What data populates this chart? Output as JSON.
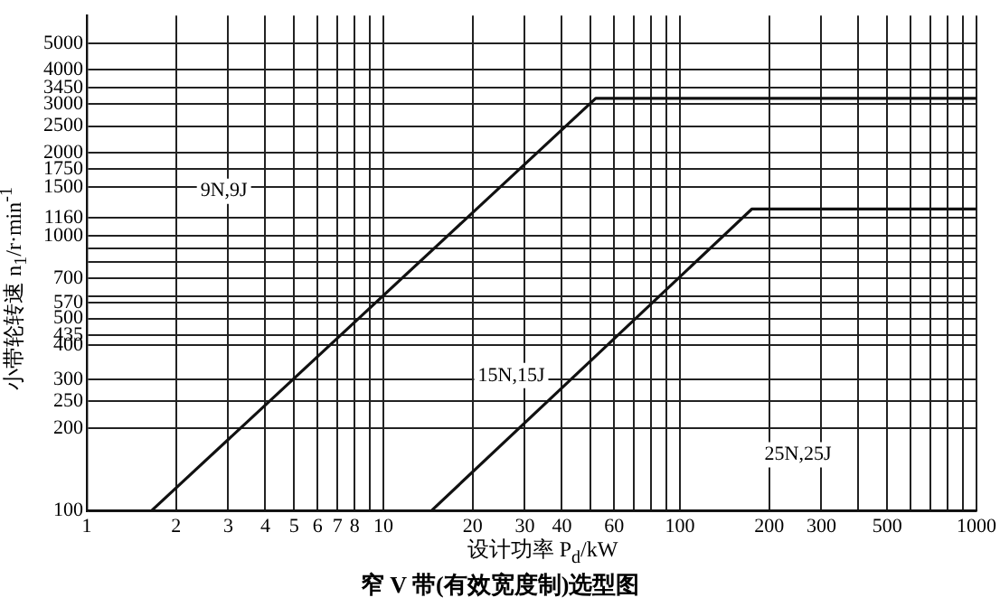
{
  "chart_data": {
    "type": "line",
    "title": "窄 V 带(有效宽度制)选型图",
    "xlabel": "设计功率 P$_{d}$/kW",
    "ylabel": "小带轮转速 n$_{1}$/r·min$^{-1}$",
    "log": "xy",
    "grid": true,
    "legend": false,
    "marker": "none",
    "line_style": "solid",
    "xlim": [
      1,
      1000
    ],
    "ylim": [
      100,
      6300
    ],
    "xticks": [
      1,
      2,
      3,
      4,
      5,
      6,
      7,
      8,
      {
        "value": 9,
        "label": null
      },
      10,
      20,
      30,
      40,
      {
        "value": 50,
        "label": null
      },
      60,
      {
        "value": 70,
        "label": null
      },
      {
        "value": 80,
        "label": null
      },
      {
        "value": 90,
        "label": null
      },
      100,
      200,
      300,
      {
        "value": 400,
        "label": null
      },
      500,
      {
        "value": 600,
        "label": null
      },
      {
        "value": 700,
        "label": null
      },
      {
        "value": 800,
        "label": null
      },
      {
        "value": 900,
        "label": null
      },
      1000
    ],
    "yticks": [
      100,
      200,
      250,
      300,
      400,
      435,
      500,
      570,
      {
        "value": 600,
        "label": null
      },
      700,
      {
        "value": 800,
        "label": null
      },
      {
        "value": 900,
        "label": null
      },
      1000,
      1160,
      1500,
      1750,
      2000,
      2500,
      3000,
      3450,
      4000,
      5000
    ],
    "series": [
      {
        "color": "#111111",
        "x": [
          1.65,
          52,
          1000
        ],
        "values": [
          100,
          3150,
          3150
        ]
      },
      {
        "color": "#111111",
        "x": [
          14.5,
          175,
          1000
        ],
        "values": [
          100,
          1250,
          1250
        ]
      }
    ],
    "annotations": [
      {
        "text": "9N,9J",
        "x": 2.9,
        "y": 1450
      },
      {
        "text": "15N,15J",
        "x": 27,
        "y": 310
      },
      {
        "text": "25N,25J",
        "x": 250,
        "y": 160
      }
    ]
  }
}
